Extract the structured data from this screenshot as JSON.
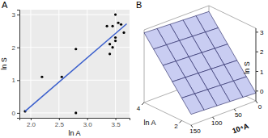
{
  "chart_data": [
    {
      "type": "scatter",
      "title": "A",
      "x_label": "ln A",
      "y_label": "ln S",
      "xlim": [
        1.8,
        3.75
      ],
      "ylim": [
        -0.15,
        3.15
      ],
      "xticks": [
        {
          "value": 2.0,
          "label": "2.0"
        },
        {
          "value": 2.5,
          "label": "2.5"
        },
        {
          "value": 3.0,
          "label": "3.0"
        },
        {
          "value": 3.5,
          "label": "3.5"
        }
      ],
      "yticks": [
        0,
        1,
        2,
        3
      ],
      "grid": true,
      "series": [
        {
          "type": "scatter",
          "color": "#000000",
          "x": [
            1.9,
            2.2,
            2.55,
            2.8,
            2.8,
            3.35,
            3.4,
            3.4,
            3.45,
            3.45,
            3.5,
            3.5,
            3.5,
            3.55,
            3.6,
            3.65
          ],
          "values": [
            0.05,
            1.1,
            1.1,
            1.95,
            0.0,
            2.65,
            1.8,
            2.1,
            2.0,
            2.65,
            2.3,
            2.2,
            3.0,
            2.75,
            2.7,
            2.45
          ]
        },
        {
          "type": "line",
          "color": "#3a5fcd",
          "x": [
            1.9,
            3.7
          ],
          "values": [
            0.05,
            2.72
          ]
        }
      ]
    },
    {
      "type": "surface",
      "title": "B",
      "x_label": "ln A",
      "y_label": "10⁴A",
      "z_label": "ln S",
      "xlim": [
        1.5,
        4
      ],
      "ylim": [
        0,
        150
      ],
      "zlim": [
        -0.5,
        3.2
      ],
      "xticks": [
        2,
        4
      ],
      "yticks": [
        0,
        50,
        100,
        150
      ],
      "zticks": [
        0,
        1,
        2,
        3
      ],
      "color": "#c9cdf2",
      "x": [
        1.5,
        2,
        2.5,
        3,
        3.5,
        4
      ],
      "y": [
        0,
        30,
        60,
        90,
        120,
        150
      ],
      "z": [
        [
          -0.1,
          -0.07,
          -0.04,
          -0.01,
          0.02,
          0.05
        ],
        [
          0.5,
          0.53,
          0.56,
          0.59,
          0.62,
          0.65
        ],
        [
          1.1,
          1.13,
          1.16,
          1.19,
          1.22,
          1.25
        ],
        [
          1.7,
          1.73,
          1.76,
          1.79,
          1.82,
          1.85
        ],
        [
          2.3,
          2.33,
          2.36,
          2.39,
          2.42,
          2.45
        ],
        [
          2.9,
          2.93,
          2.96,
          2.99,
          3.02,
          3.05
        ]
      ]
    }
  ]
}
